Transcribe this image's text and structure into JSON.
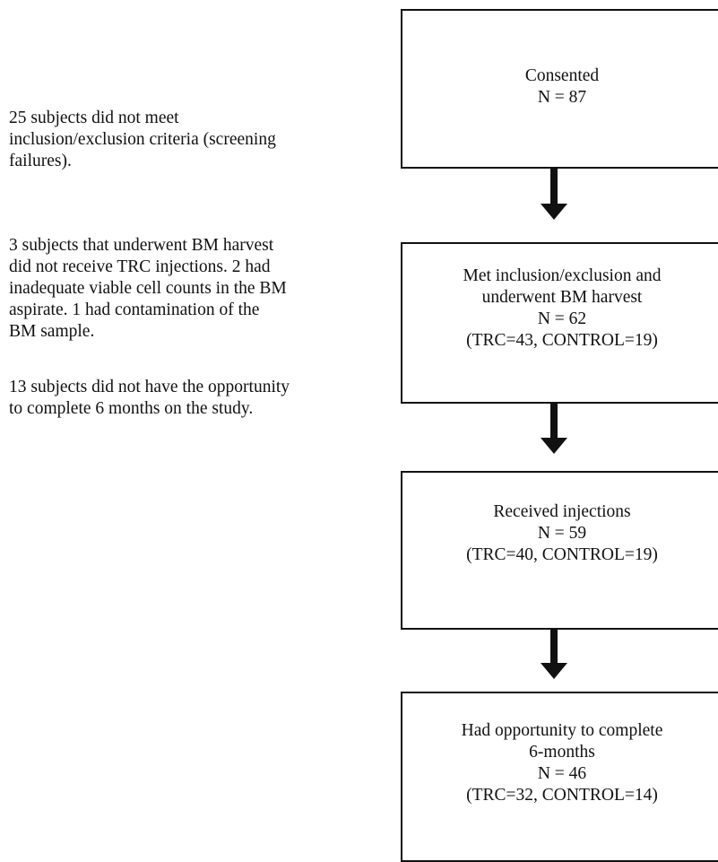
{
  "notes": [
    {
      "lines": [
        "25 subjects did not meet",
        "inclusion/exclusion criteria (screening",
        "failures)."
      ]
    },
    {
      "lines": [
        "3 subjects that underwent BM harvest",
        "did not receive TRC injections.  2 had",
        "inadequate viable cell counts in the BM",
        "aspirate.  1 had contamination of the",
        "BM sample."
      ]
    },
    {
      "lines": [
        "13 subjects did not have the opportunity",
        "to complete 6 months on the study."
      ]
    }
  ],
  "boxes": [
    {
      "lines": [
        "Consented",
        "N = 87"
      ]
    },
    {
      "lines": [
        "Met inclusion/exclusion and",
        "underwent BM harvest",
        "N = 62",
        "(TRC=43, CONTROL=19)"
      ]
    },
    {
      "lines": [
        "Received injections",
        "N = 59",
        "(TRC=40, CONTROL=19)"
      ]
    },
    {
      "lines": [
        "Had opportunity to complete",
        "6-months",
        "N = 46",
        "(TRC=32, CONTROL=14)"
      ]
    }
  ]
}
